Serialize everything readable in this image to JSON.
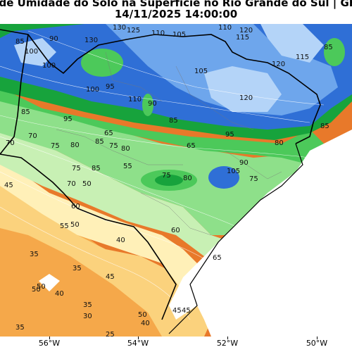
{
  "title": {
    "line1": "a de Umidade do Solo na Superfície no Rio Grande do Sul | GFS",
    "line2": "14/11/2025 14:00:00"
  },
  "colors": {
    "very_dry": "#e8792a",
    "dry": "#f5a84a",
    "mid_dry": "#fbd27d",
    "light": "#fff0b8",
    "pale_green": "#c8f0b4",
    "light_green": "#8ee08a",
    "green": "#4cc95a",
    "dark_green": "#17a33c",
    "blue": "#2f6fd6",
    "light_blue": "#6ea6ec",
    "pale_blue": "#b4d4f8",
    "white_area": "#ffffff"
  },
  "x_axis": {
    "ticks": [
      "56°W",
      "54°W",
      "52°W",
      "50°W"
    ]
  },
  "contour_labels": [
    "130",
    "125",
    "110",
    "105",
    "110",
    "120",
    "115",
    "85",
    "100",
    "90",
    "100",
    "130",
    "100",
    "95",
    "110",
    "105",
    "120",
    "115",
    "120",
    "85",
    "95",
    "85",
    "90",
    "65",
    "70",
    "75",
    "80",
    "85",
    "95",
    "65",
    "75",
    "70",
    "85",
    "80",
    "85",
    "70",
    "75",
    "85",
    "80",
    "55",
    "75",
    "80",
    "105",
    "90",
    "75",
    "45",
    "50",
    "60",
    "55",
    "50",
    "50",
    "60",
    "65",
    "45",
    "35",
    "40",
    "35",
    "45",
    "50",
    "40",
    "35",
    "30",
    "45",
    "50",
    "40",
    "35",
    "25"
  ]
}
